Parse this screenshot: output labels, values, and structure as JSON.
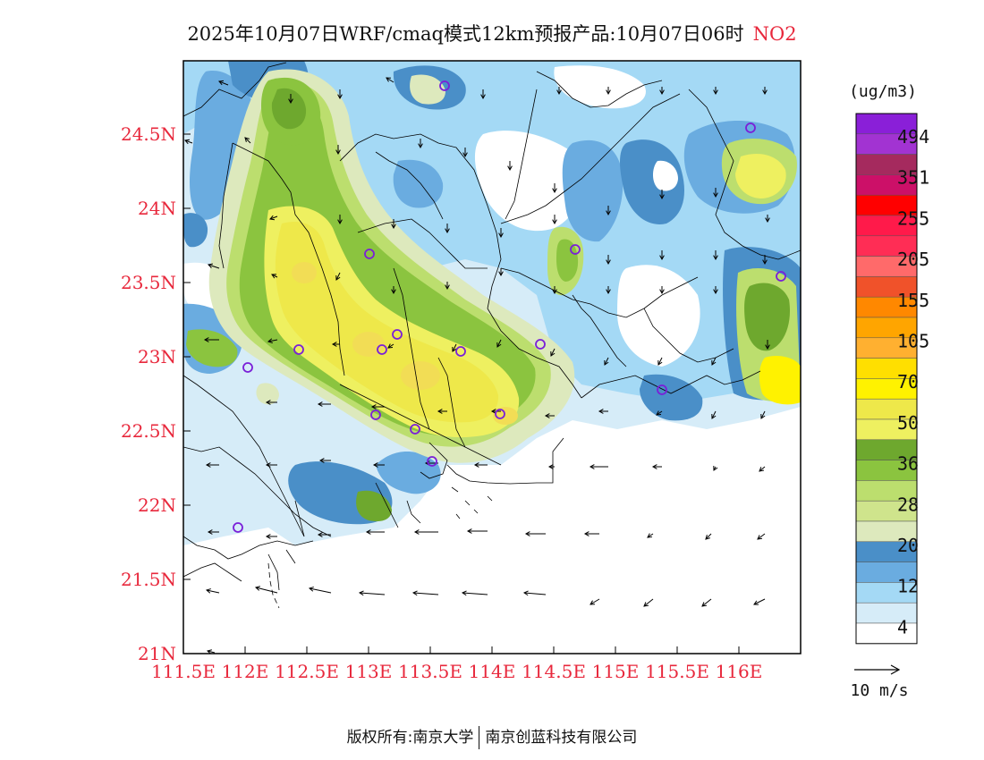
{
  "title": {
    "main": "2025年10月07日WRF/cmaq模式12km预报产品:10月07日06时",
    "pollutant": "NO2"
  },
  "colors": {
    "axis_labels": "#e8283c",
    "city_marker": "#7a1fd8",
    "border": "#000000"
  },
  "axes": {
    "lon_labels": [
      "111.5E",
      "112E",
      "112.5E",
      "113E",
      "113.5E",
      "114E",
      "114.5E",
      "115E",
      "115.5E",
      "116E"
    ],
    "lat_labels": [
      "21N",
      "21.5N",
      "22N",
      "22.5N",
      "23N",
      "23.5N",
      "24N",
      "24.5N"
    ]
  },
  "legend": {
    "unit": "(ug/m3)",
    "swatches": [
      {
        "color": "#8a1fd8"
      },
      {
        "color": "#a233d2"
      },
      {
        "color": "#a52a5e"
      },
      {
        "color": "#cc1068"
      },
      {
        "color": "#ff0000"
      },
      {
        "color": "#ff1a4a"
      },
      {
        "color": "#ff2d55"
      },
      {
        "color": "#ff6a6a"
      },
      {
        "color": "#f0522a"
      },
      {
        "color": "#ff8800"
      },
      {
        "color": "#ffa500"
      },
      {
        "color": "#ffb030"
      },
      {
        "color": "#ffdf00"
      },
      {
        "color": "#fff200"
      },
      {
        "color": "#eee84a"
      },
      {
        "color": "#eef060"
      },
      {
        "color": "#6ea82e"
      },
      {
        "color": "#8bc43f"
      },
      {
        "color": "#bcde6e"
      },
      {
        "color": "#cfe48c"
      },
      {
        "color": "#dde9bd"
      },
      {
        "color": "#4a8fc8"
      },
      {
        "color": "#6aace0"
      },
      {
        "color": "#a4d9f5"
      },
      {
        "color": "#d6ecf8"
      },
      {
        "color": "#ffffff"
      }
    ],
    "labels": [
      "494",
      "351",
      "255",
      "205",
      "155",
      "105",
      "70",
      "50",
      "36",
      "28",
      "20",
      "12",
      "4"
    ],
    "wind_reference": "10 m/s"
  },
  "footer": {
    "copyright": "版权所有:南京大学",
    "company": "南京创蓝科技有限公司"
  }
}
